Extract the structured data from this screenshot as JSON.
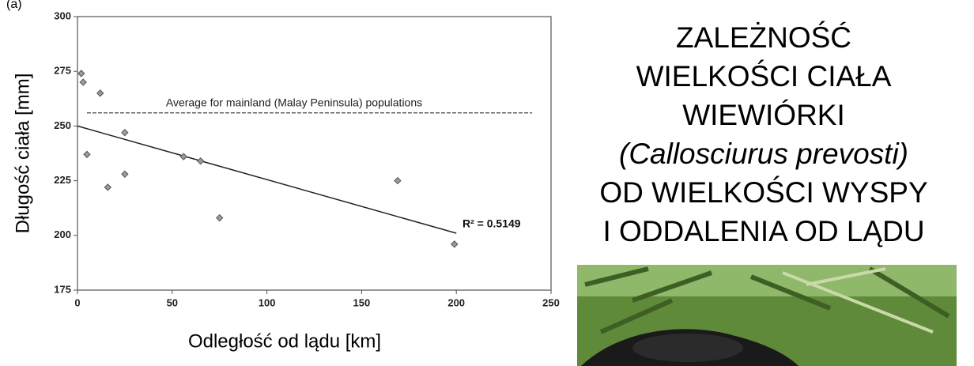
{
  "chart_data": {
    "type": "scatter",
    "panel_label": "(a)",
    "x_label": "Odległość od lądu [km]",
    "y_label": "Długość ciała [mm]",
    "x": [
      2,
      3,
      12,
      5,
      16,
      25,
      25,
      56,
      65,
      75,
      169,
      199
    ],
    "values": [
      274,
      270,
      265,
      237,
      222,
      247,
      228,
      236,
      234,
      208,
      225,
      196
    ],
    "color": "#9a9a9a",
    "xlim": [
      0,
      250
    ],
    "xticks": [
      0,
      50,
      100,
      150,
      200,
      250
    ],
    "ylim": [
      175,
      300
    ],
    "yticks": [
      175,
      200,
      225,
      250,
      275,
      300
    ],
    "grid": false,
    "trendline": {
      "x": [
        0,
        200
      ],
      "y": [
        250,
        201
      ],
      "label": "R² = 0.5149"
    },
    "reference_line": {
      "value": 256,
      "x": [
        5,
        240
      ],
      "label": "Average for mainland (Malay Peninsula) populations"
    }
  },
  "slide": {
    "title_lines": [
      "ZALEŻNOŚĆ",
      "WIELKOŚCI CIAŁA",
      "WIEWIÓRKI",
      "(Callosciurus prevosti)",
      "OD WIELKOŚCI WYSPY",
      "I ODDALENIA OD LĄDU"
    ]
  }
}
